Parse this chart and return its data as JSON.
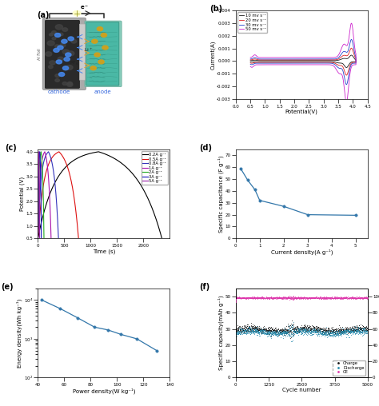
{
  "panel_b": {
    "xlabel": "Potential(V)",
    "ylabel": "Current(A)",
    "xlim": [
      0.0,
      4.5
    ],
    "ylim": [
      -0.003,
      0.004
    ],
    "xticks": [
      0.0,
      0.5,
      1.0,
      1.5,
      2.0,
      2.5,
      3.0,
      3.5,
      4.0,
      4.5
    ],
    "yticks": [
      -0.003,
      -0.002,
      -0.001,
      0.0,
      0.001,
      0.002,
      0.003,
      0.004
    ],
    "colors": [
      "#1a1a1a",
      "#dd2222",
      "#2244cc",
      "#cc22cc"
    ],
    "legend_labels": [
      "10 mv s⁻¹",
      "20 mv s⁻¹",
      "30 mv s⁻¹",
      "50 mv s⁻¹"
    ],
    "scan_factors": [
      0.55,
      1.2,
      2.0,
      3.5
    ]
  },
  "panel_c": {
    "xlabel": "Time (s)",
    "ylabel": "Potential (V)",
    "xlim": [
      0,
      2500
    ],
    "ylim": [
      0.5,
      4.1
    ],
    "xticks": [
      0,
      500,
      1000,
      1500,
      2000
    ],
    "yticks": [
      0.5,
      1.0,
      1.5,
      2.0,
      2.5,
      3.0,
      3.5,
      4.0
    ],
    "legend_labels": [
      "0.2A g⁻¹",
      "0.5A g⁻¹",
      "0.8A g⁻¹",
      "1A g⁻¹",
      "2A g⁻¹",
      "3A g⁻¹",
      "5A g⁻¹"
    ],
    "colors": [
      "#000000",
      "#dd1111",
      "#3333bb",
      "#aa11aa",
      "#22aa22",
      "#1111bb",
      "#9922aa"
    ],
    "charge_times": [
      1150,
      400,
      200,
      130,
      60,
      35,
      18
    ],
    "discharge_times": [
      1200,
      370,
      190,
      120,
      55,
      30,
      15
    ]
  },
  "panel_d": {
    "xlabel": "Current density(A g⁻¹)",
    "ylabel": "Specific capacitance (F g⁻¹)",
    "xlim": [
      0,
      5.5
    ],
    "ylim": [
      0,
      75
    ],
    "xticks": [
      0,
      1,
      2,
      3,
      4,
      5
    ],
    "yticks": [
      0,
      10,
      20,
      30,
      40,
      50,
      60,
      70
    ],
    "x_data": [
      0.2,
      0.5,
      0.8,
      1.0,
      2.0,
      3.0,
      5.0
    ],
    "y_data": [
      59,
      49,
      41,
      32,
      27,
      20,
      19.5
    ],
    "color": "#3377aa"
  },
  "panel_e": {
    "xlabel": "Power density(W kg⁻¹)",
    "ylabel": "Energy density(Wh kg⁻¹)",
    "xlim": [
      40,
      140
    ],
    "ylim": [
      200,
      20000
    ],
    "xticks": [
      40,
      60,
      80,
      100,
      120,
      140
    ],
    "x_data": [
      43,
      57,
      70,
      83,
      93,
      103,
      115,
      130
    ],
    "y_data": [
      10000,
      6000,
      3500,
      2000,
      1700,
      1300,
      1000,
      500
    ],
    "color": "#3377aa"
  },
  "panel_f": {
    "xlabel": "Cycle number",
    "ylabel_left": "Specific capacity(mAh g⁻¹)",
    "ylabel_right": "CE(%)",
    "xlim": [
      0,
      5000
    ],
    "ylim_left": [
      0,
      55
    ],
    "ylim_right": [
      0,
      110
    ],
    "xticks": [
      0,
      1250,
      2500,
      3750,
      5000
    ],
    "yticks_left": [
      0,
      10,
      20,
      30,
      40,
      50
    ],
    "yticks_right": [
      0,
      20,
      40,
      60,
      80,
      100
    ],
    "colors_charge": "#111111",
    "colors_discharge": "#2288aa",
    "colors_ce": "#dd33aa",
    "legend_labels": [
      "Charge",
      "Discharge",
      "CE"
    ],
    "charge_mean": 29.5,
    "discharge_mean": 28.0,
    "ce_mean": 98.5
  },
  "schematic": {
    "al_foil_color": "#888888",
    "cathode_color": "#2a2a2a",
    "separator_color": "#cccccc",
    "anode_color": "#4ab8a5",
    "ion_blue_color": "#4488ee",
    "ion_orange_color": "#e8a030",
    "cathode_label_color": "#3366dd",
    "anode_label_color": "#3366dd",
    "wire_color": "#333333",
    "label_color": "#555555"
  }
}
